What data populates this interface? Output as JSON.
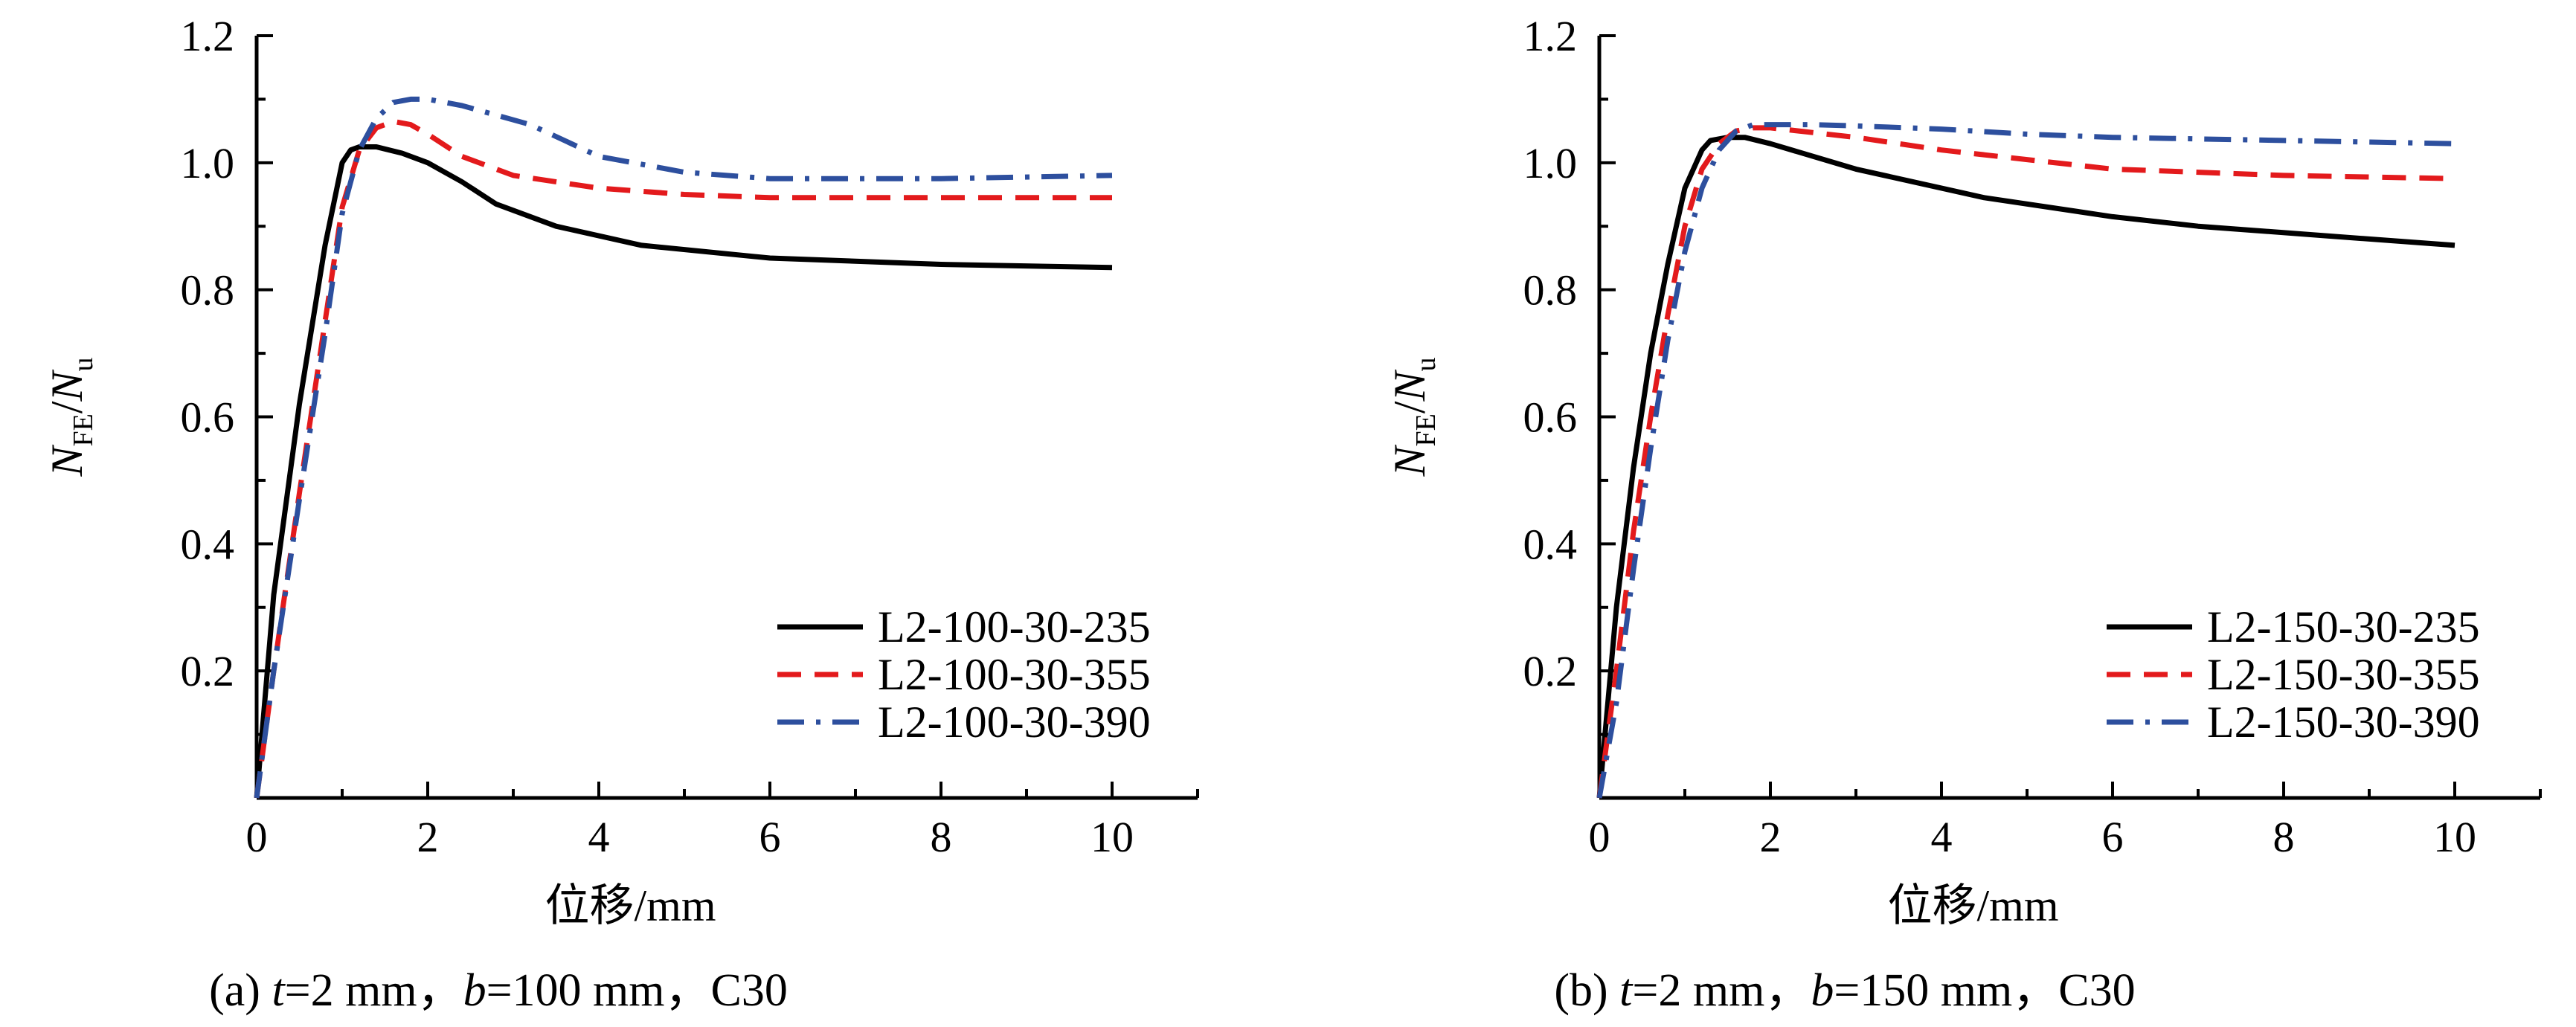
{
  "chart_data": [
    {
      "type": "line",
      "caption": "(a) t=2 mm，b=100 mm，C30",
      "caption_parts": {
        "prefix": "(a) ",
        "var1": "t",
        "mid1": "=2 mm，",
        "var2": "b",
        "mid2": "=100 mm，C30"
      },
      "xlabel": "位移/mm",
      "ylabel": {
        "N": "N",
        "FE": "FE",
        "slash": "/",
        "N2": "N",
        "u": "u"
      },
      "xlim": [
        0,
        11
      ],
      "ylim": [
        0,
        1.2
      ],
      "xticks": [
        0,
        2,
        4,
        6,
        8,
        10
      ],
      "xtick_labels": [
        "0",
        "2",
        "4",
        "6",
        "8",
        "10"
      ],
      "yticks": [
        0.2,
        0.4,
        0.6,
        0.8,
        1.0,
        1.2
      ],
      "ytick_labels": [
        "0.2",
        "0.4",
        "0.6",
        "0.8",
        "1.0",
        "1.2"
      ],
      "legend_position": "bottom-right",
      "series": [
        {
          "name": "L2-100-30-235",
          "color": "#000000",
          "dash": "solid",
          "x": [
            0,
            0.2,
            0.5,
            0.8,
            1.0,
            1.1,
            1.2,
            1.4,
            1.7,
            2.0,
            2.4,
            2.8,
            3.5,
            4.5,
            6.0,
            8.0,
            10.0
          ],
          "y": [
            0,
            0.32,
            0.62,
            0.87,
            1.0,
            1.02,
            1.025,
            1.025,
            1.015,
            1.0,
            0.97,
            0.935,
            0.9,
            0.87,
            0.85,
            0.84,
            0.835
          ]
        },
        {
          "name": "L2-100-30-355",
          "color": "#e31a1c",
          "dash": "dash",
          "x": [
            0,
            0.2,
            0.5,
            0.8,
            1.0,
            1.2,
            1.4,
            1.6,
            1.8,
            2.0,
            2.4,
            3.0,
            4.0,
            5.0,
            6.0,
            8.0,
            10.0
          ],
          "y": [
            0,
            0.2,
            0.48,
            0.75,
            0.93,
            1.02,
            1.055,
            1.065,
            1.06,
            1.045,
            1.01,
            0.98,
            0.96,
            0.95,
            0.945,
            0.945,
            0.945
          ]
        },
        {
          "name": "L2-100-30-390",
          "color": "#2d4f9e",
          "dash": "dashdot",
          "x": [
            0,
            0.2,
            0.5,
            0.8,
            1.0,
            1.2,
            1.4,
            1.6,
            1.8,
            2.0,
            2.4,
            3.2,
            4.0,
            5.0,
            6.0,
            7.0,
            8.0,
            10.0
          ],
          "y": [
            0,
            0.2,
            0.47,
            0.73,
            0.92,
            1.02,
            1.07,
            1.095,
            1.1,
            1.1,
            1.09,
            1.06,
            1.01,
            0.985,
            0.975,
            0.975,
            0.975,
            0.98
          ]
        }
      ]
    },
    {
      "type": "line",
      "caption": "(b) t=2 mm，b=150 mm，C30",
      "caption_parts": {
        "prefix": "(b) ",
        "var1": "t",
        "mid1": "=2 mm，",
        "var2": "b",
        "mid2": "=150 mm，C30"
      },
      "xlabel": "位移/mm",
      "ylabel": {
        "N": "N",
        "FE": "FE",
        "slash": "/",
        "N2": "N",
        "u": "u"
      },
      "xlim": [
        0,
        11
      ],
      "ylim": [
        0,
        1.2
      ],
      "xticks": [
        0,
        2,
        4,
        6,
        8,
        10
      ],
      "xtick_labels": [
        "0",
        "2",
        "4",
        "6",
        "8",
        "10"
      ],
      "yticks": [
        0.2,
        0.4,
        0.6,
        0.8,
        1.0,
        1.2
      ],
      "ytick_labels": [
        "0.2",
        "0.4",
        "0.6",
        "0.8",
        "1.0",
        "1.2"
      ],
      "legend_position": "bottom-right",
      "series": [
        {
          "name": "L2-150-30-235",
          "color": "#000000",
          "dash": "solid",
          "x": [
            0,
            0.2,
            0.4,
            0.6,
            0.8,
            1.0,
            1.2,
            1.3,
            1.5,
            1.7,
            2.0,
            3.0,
            4.5,
            6.0,
            7.0,
            8.5,
            10.0
          ],
          "y": [
            0,
            0.3,
            0.52,
            0.7,
            0.84,
            0.96,
            1.02,
            1.035,
            1.04,
            1.04,
            1.03,
            0.99,
            0.945,
            0.915,
            0.9,
            0.885,
            0.87
          ]
        },
        {
          "name": "L2-150-30-355",
          "color": "#e31a1c",
          "dash": "dash",
          "x": [
            0,
            0.2,
            0.4,
            0.6,
            0.8,
            1.0,
            1.2,
            1.4,
            1.6,
            1.8,
            2.0,
            3.0,
            4.0,
            5.0,
            6.0,
            7.0,
            8.0,
            10.0
          ],
          "y": [
            0,
            0.2,
            0.42,
            0.6,
            0.76,
            0.9,
            0.99,
            1.03,
            1.05,
            1.055,
            1.055,
            1.04,
            1.02,
            1.005,
            0.99,
            0.985,
            0.98,
            0.975
          ]
        },
        {
          "name": "L2-150-30-390",
          "color": "#2d4f9e",
          "dash": "dashdot",
          "x": [
            0,
            0.2,
            0.4,
            0.6,
            0.8,
            1.0,
            1.2,
            1.4,
            1.6,
            1.8,
            2.0,
            2.5,
            3.0,
            4.0,
            5.0,
            6.0,
            8.0,
            10.0
          ],
          "y": [
            0,
            0.15,
            0.36,
            0.55,
            0.72,
            0.86,
            0.96,
            1.02,
            1.05,
            1.06,
            1.06,
            1.06,
            1.058,
            1.053,
            1.045,
            1.04,
            1.035,
            1.03
          ]
        }
      ]
    }
  ]
}
